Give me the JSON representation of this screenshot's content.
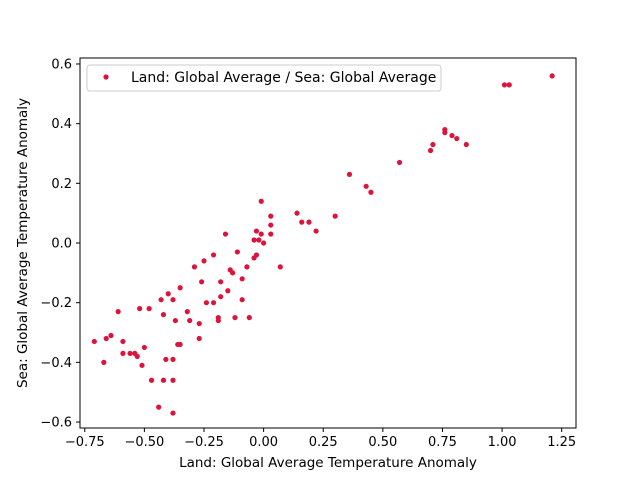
{
  "chart_data": {
    "type": "scatter",
    "xlabel": "Land: Global Average Temperature Anomaly",
    "ylabel": "Sea: Global Average Temperature Anomaly",
    "xlim": [
      -0.77,
      1.31
    ],
    "ylim": [
      -0.62,
      0.62
    ],
    "x_ticks": [
      -0.75,
      -0.5,
      -0.25,
      0.0,
      0.25,
      0.5,
      0.75,
      1.0,
      1.25
    ],
    "x_tick_labels": [
      "−0.75",
      "−0.50",
      "−0.25",
      "0.00",
      "0.25",
      "0.50",
      "0.75",
      "1.00",
      "1.25"
    ],
    "y_ticks": [
      -0.6,
      -0.4,
      -0.2,
      0.0,
      0.2,
      0.4,
      0.6
    ],
    "y_tick_labels": [
      "−0.6",
      "−0.4",
      "−0.2",
      "0.0",
      "0.2",
      "0.4",
      "0.6"
    ],
    "grid": false,
    "legend_position": "upper-left",
    "series": [
      {
        "name": "Land: Global Average / Sea: Global Average",
        "color": "#dc143c",
        "marker": "dot",
        "points": [
          [
            -0.71,
            -0.33
          ],
          [
            -0.67,
            -0.4
          ],
          [
            -0.66,
            -0.32
          ],
          [
            -0.64,
            -0.31
          ],
          [
            -0.61,
            -0.23
          ],
          [
            -0.59,
            -0.33
          ],
          [
            -0.59,
            -0.37
          ],
          [
            -0.56,
            -0.37
          ],
          [
            -0.54,
            -0.37
          ],
          [
            -0.53,
            -0.38
          ],
          [
            -0.52,
            -0.22
          ],
          [
            -0.51,
            -0.41
          ],
          [
            -0.5,
            -0.35
          ],
          [
            -0.48,
            -0.22
          ],
          [
            -0.47,
            -0.46
          ],
          [
            -0.44,
            -0.55
          ],
          [
            -0.43,
            -0.19
          ],
          [
            -0.42,
            -0.46
          ],
          [
            -0.42,
            -0.24
          ],
          [
            -0.41,
            -0.39
          ],
          [
            -0.4,
            -0.17
          ],
          [
            -0.38,
            -0.39
          ],
          [
            -0.38,
            -0.46
          ],
          [
            -0.38,
            -0.57
          ],
          [
            -0.38,
            -0.19
          ],
          [
            -0.37,
            -0.26
          ],
          [
            -0.36,
            -0.34
          ],
          [
            -0.35,
            -0.34
          ],
          [
            -0.35,
            -0.15
          ],
          [
            -0.32,
            -0.23
          ],
          [
            -0.31,
            -0.26
          ],
          [
            -0.29,
            -0.08
          ],
          [
            -0.27,
            -0.32
          ],
          [
            -0.27,
            -0.27
          ],
          [
            -0.26,
            -0.13
          ],
          [
            -0.25,
            -0.06
          ],
          [
            -0.24,
            -0.2
          ],
          [
            -0.21,
            -0.04
          ],
          [
            -0.21,
            -0.2
          ],
          [
            -0.19,
            -0.25
          ],
          [
            -0.19,
            -0.26
          ],
          [
            -0.18,
            -0.18
          ],
          [
            -0.18,
            -0.13
          ],
          [
            -0.16,
            0.03
          ],
          [
            -0.15,
            -0.16
          ],
          [
            -0.14,
            -0.09
          ],
          [
            -0.13,
            -0.1
          ],
          [
            -0.12,
            -0.25
          ],
          [
            -0.11,
            -0.03
          ],
          [
            -0.09,
            -0.19
          ],
          [
            -0.09,
            -0.12
          ],
          [
            -0.07,
            -0.08
          ],
          [
            -0.06,
            -0.25
          ],
          [
            -0.04,
            -0.05
          ],
          [
            -0.04,
            0.01
          ],
          [
            -0.03,
            -0.04
          ],
          [
            -0.03,
            0.04
          ],
          [
            -0.02,
            0.01
          ],
          [
            -0.01,
            0.03
          ],
          [
            -0.01,
            0.14
          ],
          [
            0.0,
            0.0
          ],
          [
            0.03,
            0.06
          ],
          [
            0.03,
            0.09
          ],
          [
            0.03,
            0.03
          ],
          [
            0.07,
            -0.08
          ],
          [
            0.14,
            0.1
          ],
          [
            0.16,
            0.07
          ],
          [
            0.19,
            0.07
          ],
          [
            0.22,
            0.04
          ],
          [
            0.3,
            0.09
          ],
          [
            0.36,
            0.23
          ],
          [
            0.43,
            0.19
          ],
          [
            0.45,
            0.17
          ],
          [
            0.57,
            0.27
          ],
          [
            0.7,
            0.31
          ],
          [
            0.71,
            0.33
          ],
          [
            0.76,
            0.37
          ],
          [
            0.76,
            0.38
          ],
          [
            0.79,
            0.36
          ],
          [
            0.81,
            0.35
          ],
          [
            0.85,
            0.33
          ],
          [
            1.01,
            0.53
          ],
          [
            1.03,
            0.53
          ],
          [
            1.21,
            0.56
          ]
        ]
      }
    ]
  }
}
